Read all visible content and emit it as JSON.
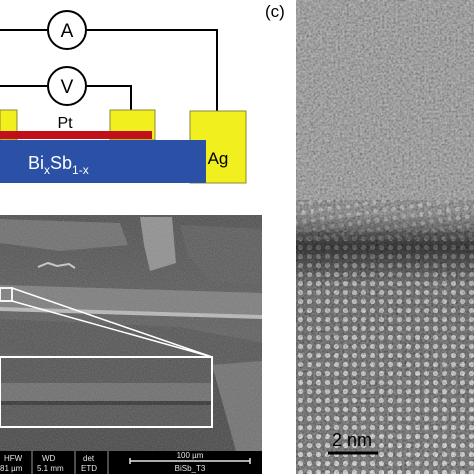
{
  "schematic": {
    "ammeter_symbol": "A",
    "voltmeter_symbol": "V",
    "pt_label": "Pt",
    "substrate_base": "Bi",
    "substrate_sub1": "x",
    "substrate_mid": "Sb",
    "substrate_sub2": "1-x",
    "ag_label": "Ag",
    "colors": {
      "pad_yellow": "#f2ef1e",
      "pt_red": "#c0111b",
      "substrate_blue": "#2a51a6",
      "wire": "#000000"
    }
  },
  "sem": {
    "hfw_label": "HFW",
    "hfw_value": "81 µm",
    "wd_label": "WD",
    "wd_value": "5.1 mm",
    "det_label": "det",
    "det_value": "ETD",
    "scale_label": "100 µm",
    "sample_id": "BiSb_T3"
  },
  "tem": {
    "panel_label": "(c)",
    "scale_label": "2 nm"
  }
}
